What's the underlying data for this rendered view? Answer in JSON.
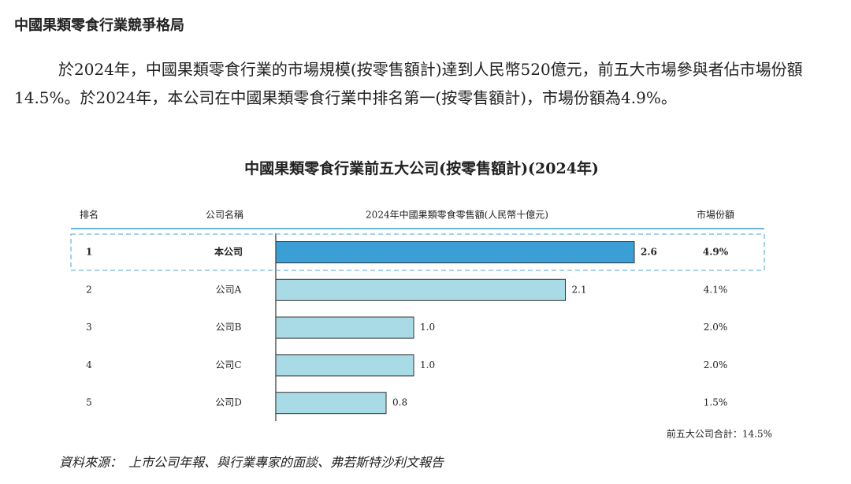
{
  "heading": "中國果類零食行業競爭格局",
  "paragraph": "於2024年，中國果類零食行業的市場規模(按零售額計)達到人民幣520億元，前五大市場參與者佔市場份額14.5%。於2024年，本公司在中國果類零食行業中排名第一(按零售額計)，市場份額為4.9%。",
  "chart_data": {
    "type": "bar",
    "title": "中國果類零食行業前五大公司(按零售額計)(2024年)",
    "column_headers": [
      "排名",
      "公司名稱",
      "2024年中國果類零食零售額(人民幣十億元)",
      "市場份額"
    ],
    "ranks": [
      1,
      2,
      3,
      4,
      5
    ],
    "categories": [
      "本公司",
      "公司A",
      "公司B",
      "公司C",
      "公司D"
    ],
    "values": [
      2.6,
      2.1,
      1.0,
      1.0,
      0.8
    ],
    "value_labels": [
      "2.6",
      "2.1",
      "1.0",
      "1.0",
      "0.8"
    ],
    "market_share": [
      "4.9%",
      "4.1%",
      "2.0%",
      "2.0%",
      "1.5%"
    ],
    "colors": [
      "#3b9fd5",
      "#a9dbe7",
      "#a9dbe7",
      "#a9dbe7",
      "#a9dbe7"
    ],
    "total_note": "前五大公司合計：14.5%"
  },
  "source": "資料來源：　上市公司年報、與行業專家的面談、弗若斯特沙利文報告"
}
